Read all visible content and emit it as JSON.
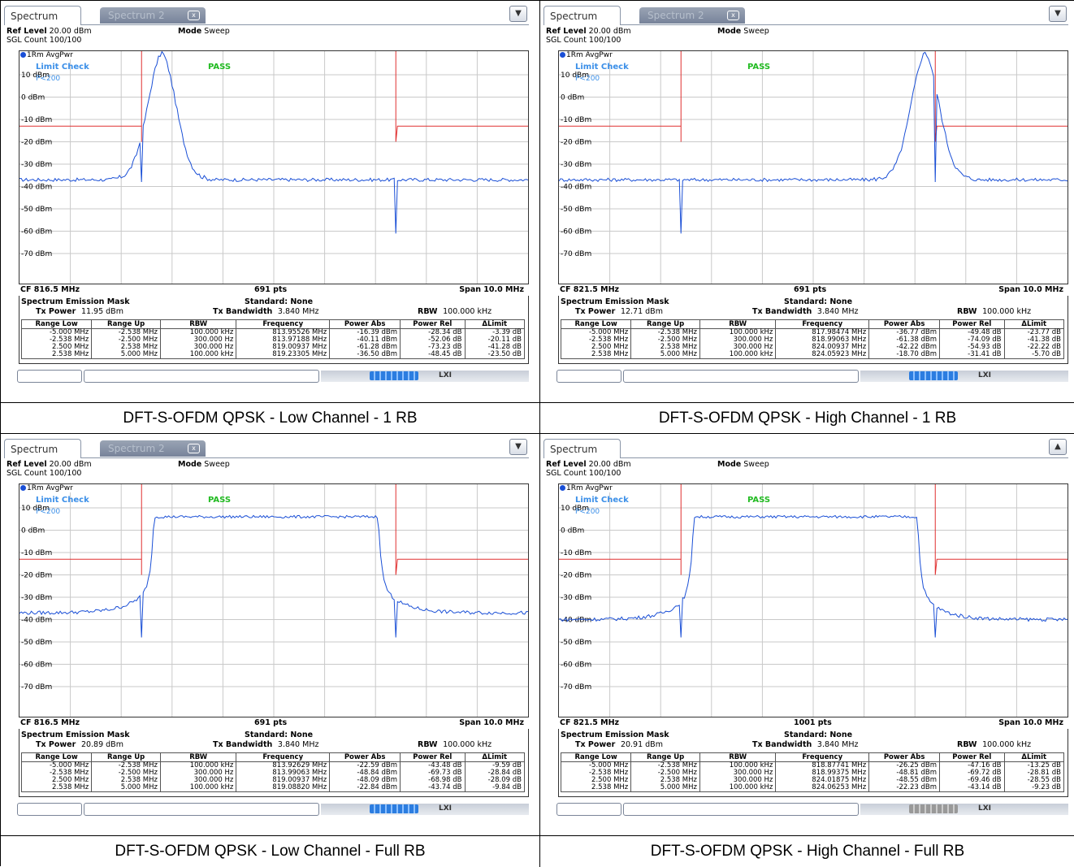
{
  "panels": [
    {
      "caption": "DFT-S-OFDM QPSK - Low Channel - 1 RB",
      "tab1": "Spectrum",
      "tab2": "Spectrum 2",
      "has_tab2": true,
      "icon": "▼",
      "ref_level_label": "Ref Level",
      "ref_level": "20.00 dBm",
      "sgl_count": "SGL Count 100/100",
      "mode_label": "Mode",
      "mode": "Sweep",
      "trace": "1Rm AvgPwr",
      "limit_check": "Limit Check",
      "limit_name": "P<200",
      "limit_result": "PASS",
      "y_labels": [
        "10 dBm",
        "0 dBm",
        "-10 dBm",
        "-20 dBm",
        "-30 dBm",
        "-40 dBm",
        "-50 dBm",
        "-60 dBm",
        "-70 dBm"
      ],
      "cf": "CF 816.5 MHz",
      "pts": "691 pts",
      "span": "Span 10.0 MHz",
      "sem_title": "Spectrum Emission Mask",
      "standard": "Standard: None",
      "tx_power_label": "Tx Power",
      "tx_power": "11.95 dBm",
      "tx_bw_label": "Tx Bandwidth",
      "tx_bw": "3.840 MHz",
      "rbw_label": "RBW",
      "rbw": "100.000 kHz",
      "columns": [
        "Range Low",
        "Range Up",
        "RBW",
        "Frequency",
        "Power Abs",
        "Power Rel",
        "ΔLimit"
      ],
      "rows": [
        [
          "-5.000 MHz",
          "-2.538 MHz",
          "100.000 kHz",
          "813.95526 MHz",
          "-16.39 dBm",
          "-28.34 dB",
          "-3.39 dB"
        ],
        [
          "-2.538 MHz",
          "-2.500 MHz",
          "300.000 Hz",
          "813.97188 MHz",
          "-40.11 dBm",
          "-52.06 dB",
          "-20.11 dB"
        ],
        [
          "2.500 MHz",
          "2.538 MHz",
          "300.000 Hz",
          "819.00937 MHz",
          "-61.28 dBm",
          "-73.23 dB",
          "-41.28 dB"
        ],
        [
          "2.538 MHz",
          "5.000 MHz",
          "100.000 kHz",
          "819.23305 MHz",
          "-36.50 dBm",
          "-48.45 dB",
          "-23.50 dB"
        ]
      ],
      "status_gray": false,
      "spectrum": {
        "type": "narrow",
        "center": 0.28,
        "peak_db": 14,
        "floor_db": -37,
        "dip_left_x": 0.24,
        "dip_left_db": -38,
        "dip_right_x": 0.74,
        "dip_right_db": -61,
        "limit_left_x": 0.24,
        "limit_right_x": 0.74
      }
    },
    {
      "caption": "DFT-S-OFDM QPSK - High Channel - 1 RB",
      "tab1": "Spectrum",
      "tab2": "Spectrum 2",
      "has_tab2": true,
      "icon": "▼",
      "ref_level_label": "Ref Level",
      "ref_level": "20.00 dBm",
      "sgl_count": "SGL Count 100/100",
      "mode_label": "Mode",
      "mode": "Sweep",
      "trace": "1Rm AvgPwr",
      "limit_check": "Limit Check",
      "limit_name": "P<200",
      "limit_result": "PASS",
      "y_labels": [
        "10 dBm",
        "0 dBm",
        "-10 dBm",
        "-20 dBm",
        "-30 dBm",
        "-40 dBm",
        "-50 dBm",
        "-60 dBm",
        "-70 dBm"
      ],
      "cf": "CF 821.5 MHz",
      "pts": "691 pts",
      "span": "Span 10.0 MHz",
      "sem_title": "Spectrum Emission Mask",
      "standard": "Standard: None",
      "tx_power_label": "Tx Power",
      "tx_power": "12.71 dBm",
      "tx_bw_label": "Tx Bandwidth",
      "tx_bw": "3.840 MHz",
      "rbw_label": "RBW",
      "rbw": "100.000 kHz",
      "columns": [
        "Range Low",
        "Range Up",
        "RBW",
        "Frequency",
        "Power Abs",
        "Power Rel",
        "ΔLimit"
      ],
      "rows": [
        [
          "-5.000 MHz",
          "-2.538 MHz",
          "100.000 kHz",
          "817.98474 MHz",
          "-36.77 dBm",
          "-49.48 dB",
          "-23.77 dB"
        ],
        [
          "-2.538 MHz",
          "-2.500 MHz",
          "300.000 Hz",
          "818.99063 MHz",
          "-61.38 dBm",
          "-74.09 dB",
          "-41.38 dB"
        ],
        [
          "2.500 MHz",
          "2.538 MHz",
          "300.000 Hz",
          "824.00937 MHz",
          "-42.22 dBm",
          "-54.93 dB",
          "-22.22 dB"
        ],
        [
          "2.538 MHz",
          "5.000 MHz",
          "100.000 kHz",
          "824.05923 MHz",
          "-18.70 dBm",
          "-31.41 dB",
          "-5.70 dB"
        ]
      ],
      "status_gray": false,
      "spectrum": {
        "type": "narrow",
        "center": 0.72,
        "peak_db": 14,
        "floor_db": -37,
        "dip_left_x": 0.24,
        "dip_left_db": -61,
        "dip_right_x": 0.74,
        "dip_right_db": -38,
        "limit_left_x": 0.24,
        "limit_right_x": 0.74
      }
    },
    {
      "caption": "DFT-S-OFDM QPSK - Low Channel - Full RB",
      "tab1": "Spectrum",
      "tab2": "Spectrum 2",
      "has_tab2": true,
      "icon": "▼",
      "ref_level_label": "Ref Level",
      "ref_level": "20.00 dBm",
      "sgl_count": "SGL Count 100/100",
      "mode_label": "Mode",
      "mode": "Sweep",
      "trace": "1Rm AvgPwr",
      "limit_check": "Limit Check",
      "limit_name": "P<200",
      "limit_result": "PASS",
      "y_labels": [
        "10 dBm",
        "0 dBm",
        "-10 dBm",
        "-20 dBm",
        "-30 dBm",
        "-40 dBm",
        "-50 dBm",
        "-60 dBm",
        "-70 dBm"
      ],
      "cf": "CF 816.5 MHz",
      "pts": "691 pts",
      "span": "Span 10.0 MHz",
      "sem_title": "Spectrum Emission Mask",
      "standard": "Standard: None",
      "tx_power_label": "Tx Power",
      "tx_power": "20.89 dBm",
      "tx_bw_label": "Tx Bandwidth",
      "tx_bw": "3.840 MHz",
      "rbw_label": "RBW",
      "rbw": "100.000 kHz",
      "columns": [
        "Range Low",
        "Range Up",
        "RBW",
        "Frequency",
        "Power Abs",
        "Power Rel",
        "ΔLimit"
      ],
      "rows": [
        [
          "-5.000 MHz",
          "-2.538 MHz",
          "100.000 kHz",
          "813.92629 MHz",
          "-22.59 dBm",
          "-43.48 dB",
          "-9.59 dB"
        ],
        [
          "-2.538 MHz",
          "-2.500 MHz",
          "300.000 Hz",
          "813.99063 MHz",
          "-48.84 dBm",
          "-69.73 dB",
          "-28.84 dB"
        ],
        [
          "2.500 MHz",
          "2.538 MHz",
          "300.000 Hz",
          "819.00937 MHz",
          "-48.09 dBm",
          "-68.98 dB",
          "-28.09 dB"
        ],
        [
          "2.538 MHz",
          "5.000 MHz",
          "100.000 kHz",
          "819.08820 MHz",
          "-22.84 dBm",
          "-43.74 dB",
          "-9.84 dB"
        ]
      ],
      "status_gray": false,
      "spectrum": {
        "type": "wide",
        "plateau_db": 6,
        "floor_db": -37,
        "dip_left_x": 0.24,
        "dip_left_db": -48,
        "dip_right_x": 0.74,
        "dip_right_db": -48,
        "limit_left_x": 0.24,
        "limit_right_x": 0.74
      }
    },
    {
      "caption": "DFT-S-OFDM QPSK - High Channel - Full RB",
      "tab1": "Spectrum",
      "tab2": "",
      "has_tab2": false,
      "icon": "▲",
      "ref_level_label": "Ref Level",
      "ref_level": "20.00 dBm",
      "sgl_count": "SGL Count 100/100",
      "mode_label": "Mode",
      "mode": "Sweep",
      "trace": "1Rm AvgPwr",
      "limit_check": "Limit Check",
      "limit_name": "P<200",
      "limit_result": "PASS",
      "y_labels": [
        "10 dBm",
        "0 dBm",
        "-10 dBm",
        "-20 dBm",
        "-30 dBm",
        "-40 dBm",
        "-50 dBm",
        "-60 dBm",
        "-70 dBm"
      ],
      "cf": "CF 821.5 MHz",
      "pts": "1001 pts",
      "span": "Span 10.0 MHz",
      "sem_title": "Spectrum Emission Mask",
      "standard": "Standard: None",
      "tx_power_label": "Tx Power",
      "tx_power": "20.91 dBm",
      "tx_bw_label": "Tx Bandwidth",
      "tx_bw": "3.840 MHz",
      "rbw_label": "RBW",
      "rbw": "100.000 kHz",
      "columns": [
        "Range Low",
        "Range Up",
        "RBW",
        "Frequency",
        "Power Abs",
        "Power Rel",
        "ΔLimit"
      ],
      "rows": [
        [
          "-5.000 MHz",
          "-2.538 MHz",
          "100.000 kHz",
          "818.87741 MHz",
          "-26.25 dBm",
          "-47.16 dB",
          "-13.25 dB"
        ],
        [
          "-2.538 MHz",
          "-2.500 MHz",
          "300.000 Hz",
          "818.99375 MHz",
          "-48.81 dBm",
          "-69.72 dB",
          "-28.81 dB"
        ],
        [
          "2.500 MHz",
          "2.538 MHz",
          "300.000 Hz",
          "824.01875 MHz",
          "-48.55 dBm",
          "-69.46 dB",
          "-28.55 dB"
        ],
        [
          "2.538 MHz",
          "5.000 MHz",
          "100.000 kHz",
          "824.06253 MHz",
          "-22.23 dBm",
          "-43.14 dB",
          "-9.23 dB"
        ]
      ],
      "status_gray": true,
      "spectrum": {
        "type": "wide",
        "plateau_db": 6,
        "floor_db": -40,
        "dip_left_x": 0.24,
        "dip_left_db": -48,
        "dip_right_x": 0.74,
        "dip_right_db": -48,
        "limit_left_x": 0.24,
        "limit_right_x": 0.74
      }
    }
  ],
  "colors": {
    "trace": "#1a4fd6",
    "limit": "#e03030",
    "pass": "#22bb22",
    "limit_text": "#3b8fe8"
  }
}
